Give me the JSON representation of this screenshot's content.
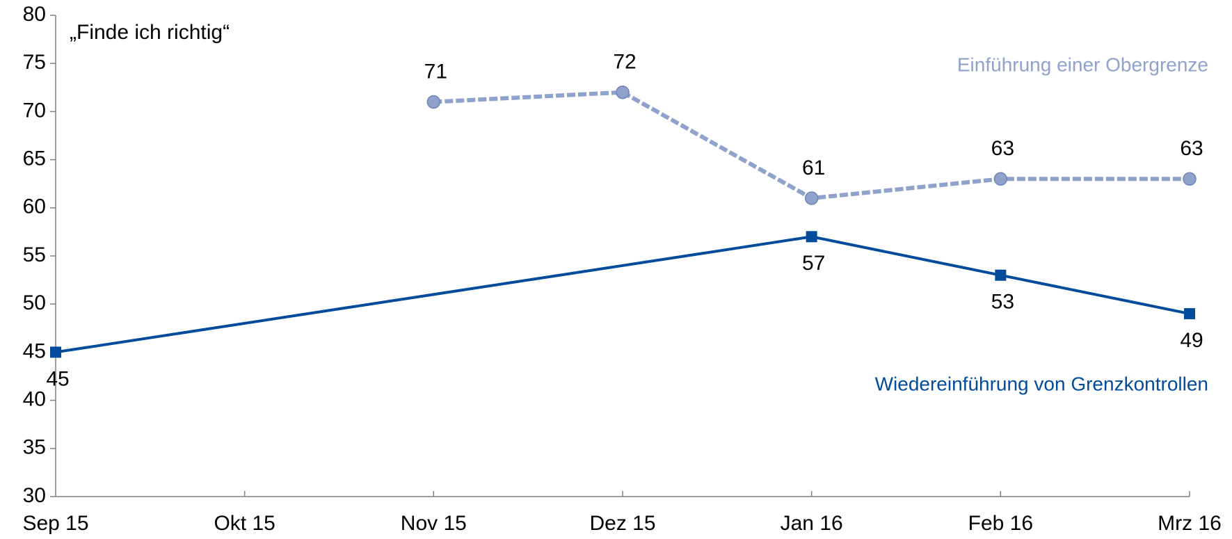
{
  "chart_data": {
    "type": "line",
    "annotation": "„Finde ich richtig“",
    "categories": [
      "Sep 15",
      "Okt 15",
      "Nov 15",
      "Dez 15",
      "Jan 16",
      "Feb 16",
      "Mrz 16"
    ],
    "series": [
      {
        "name": "Einführung einer Obergrenze",
        "color": "#8fa2cc",
        "line_style": "dashed",
        "marker": "circle",
        "label_position": "above",
        "x": [
          "Nov 15",
          "Dez 15",
          "Jan 16",
          "Feb 16",
          "Mrz 16"
        ],
        "values": [
          71,
          72,
          61,
          63,
          63
        ]
      },
      {
        "name": "Wiedereinführung von Grenzkontrollen",
        "color": "#004b9b",
        "line_style": "solid",
        "marker": "square",
        "label_position": "below",
        "x": [
          "Sep 15",
          "Jan 16",
          "Feb 16",
          "Mrz 16"
        ],
        "values": [
          45,
          57,
          53,
          49
        ]
      }
    ],
    "ylim": [
      30,
      80
    ],
    "yticks": [
      30,
      35,
      40,
      45,
      50,
      55,
      60,
      65,
      70,
      75,
      80
    ],
    "grid": false
  }
}
